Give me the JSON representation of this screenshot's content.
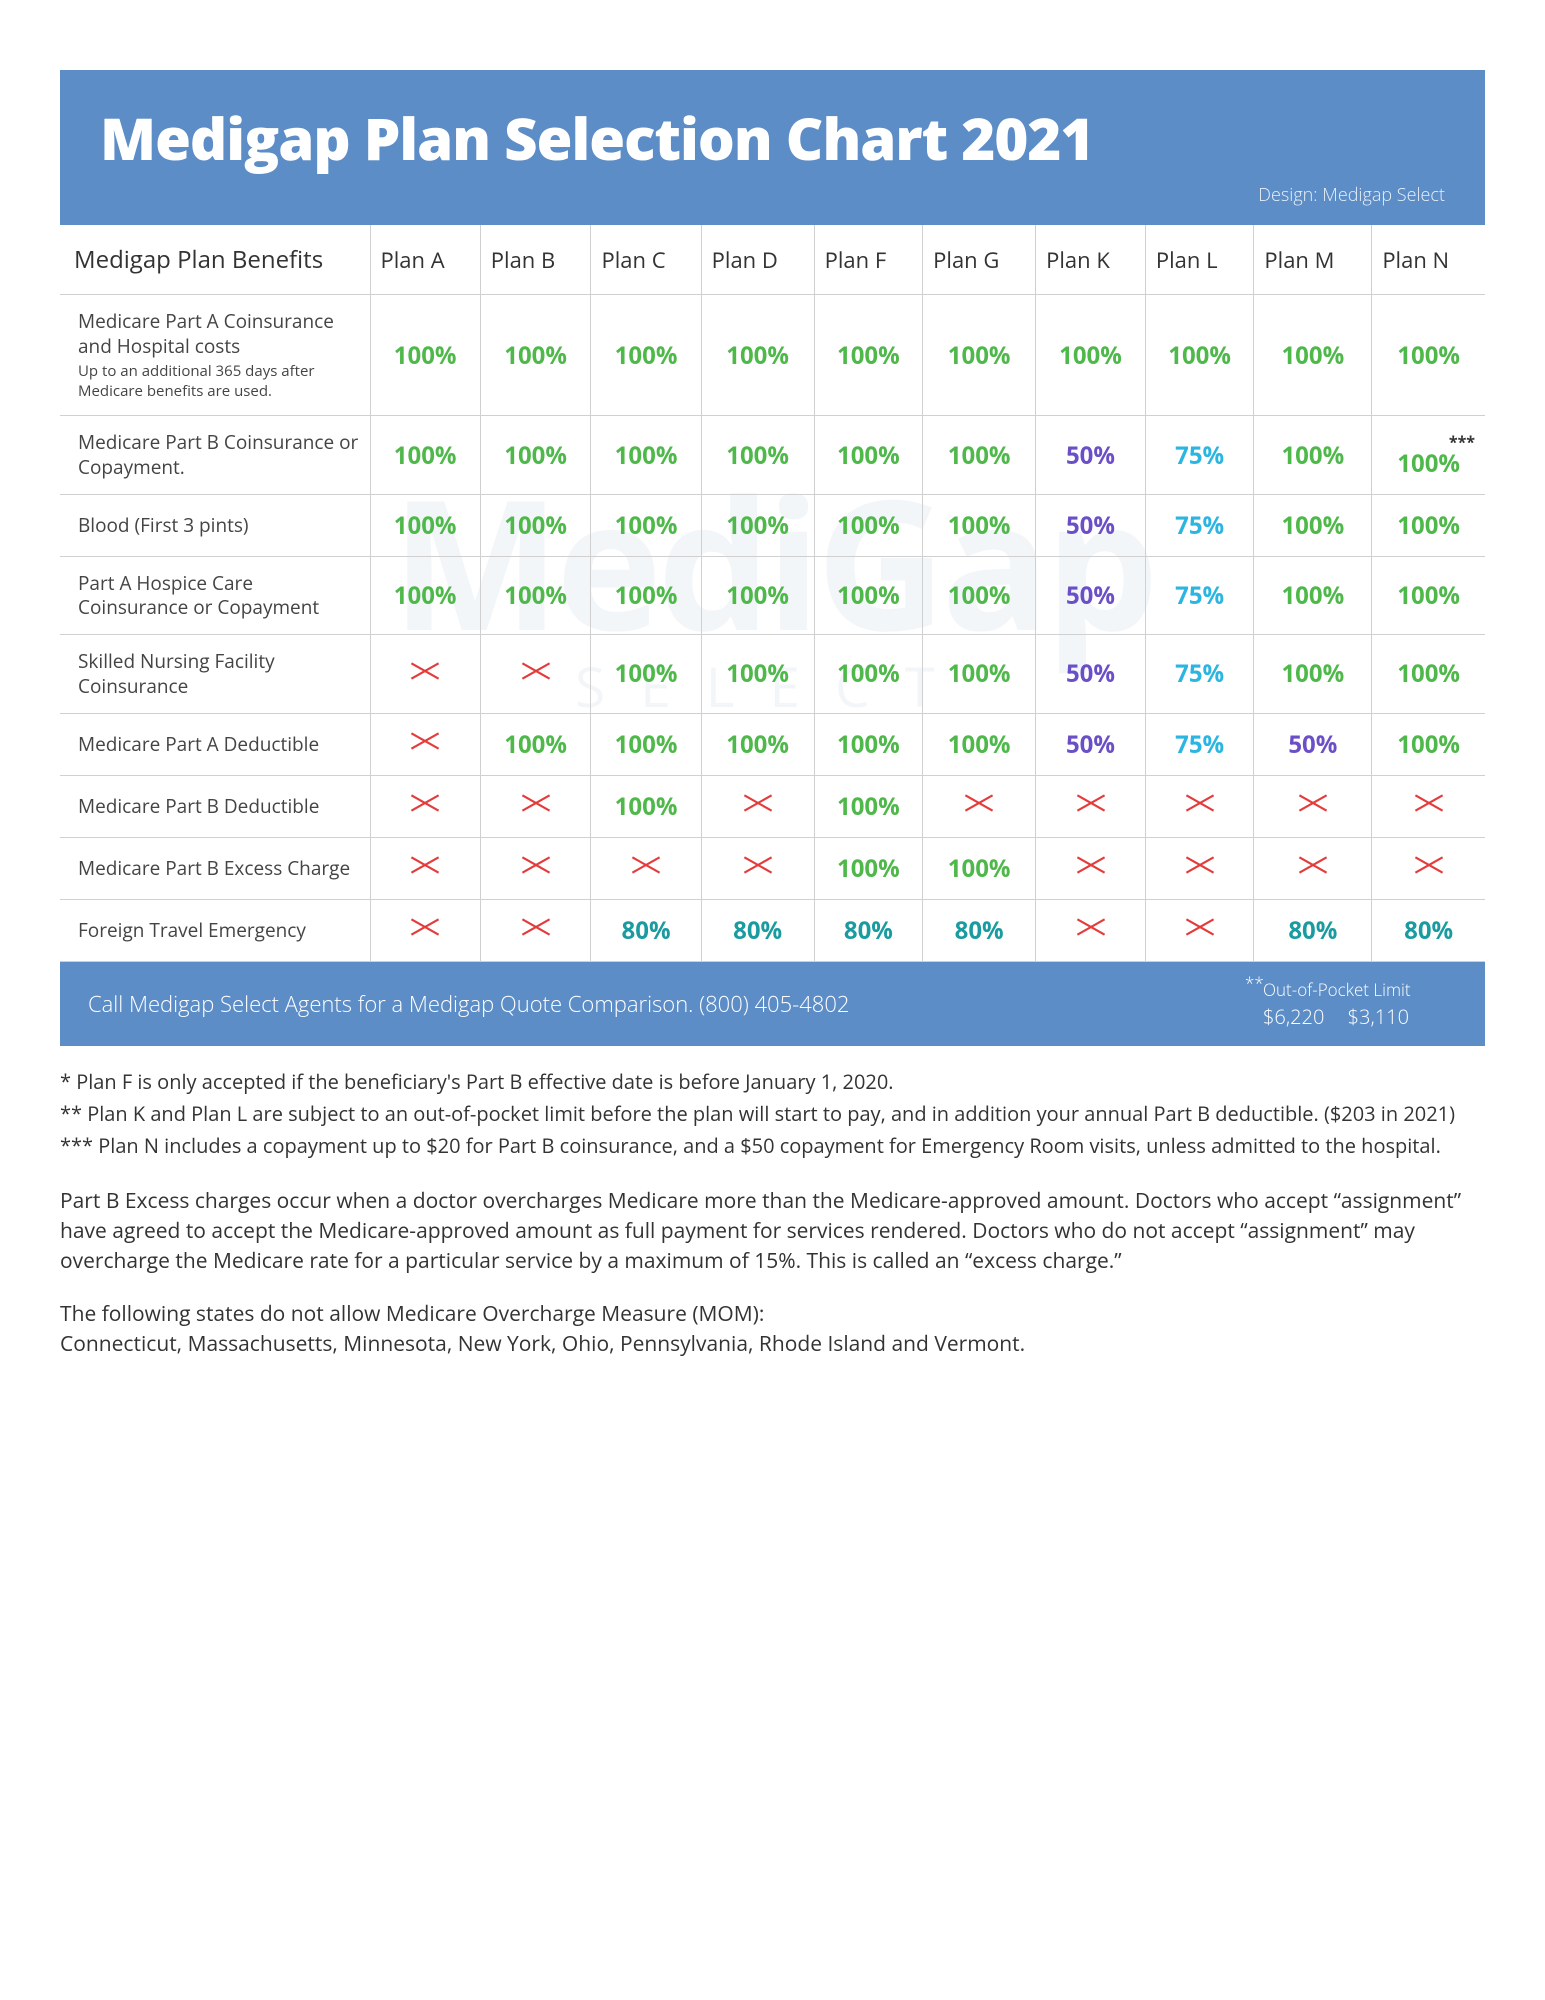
{
  "header": {
    "title": "Medigap Plan Selection Chart 2021",
    "credit": "Design: Medigap Select"
  },
  "watermark": {
    "main": "MediGap",
    "sub": "SELECT"
  },
  "colors": {
    "green": "#4fb84a",
    "purple": "#6b4fc7",
    "cyan": "#2bb5e0",
    "teal": "#1a9ba0",
    "x_stroke": "#e43b3b"
  },
  "columns": [
    "Medigap Plan Benefits",
    "Plan A",
    "Plan B",
    "Plan C",
    "Plan D",
    "Plan F",
    "Plan G",
    "Plan K",
    "Plan L",
    "Plan M",
    "Plan N"
  ],
  "rows": [
    {
      "label": "Medicare Part A Coinsurance and Hospital costs",
      "sub": "Up to an additional 365 days after Medicare benefits are used.",
      "cells": [
        {
          "v": "100%",
          "c": "green"
        },
        {
          "v": "100%",
          "c": "green"
        },
        {
          "v": "100%",
          "c": "green"
        },
        {
          "v": "100%",
          "c": "green"
        },
        {
          "v": "100%",
          "c": "green"
        },
        {
          "v": "100%",
          "c": "green"
        },
        {
          "v": "100%",
          "c": "green"
        },
        {
          "v": "100%",
          "c": "green"
        },
        {
          "v": "100%",
          "c": "green"
        },
        {
          "v": "100%",
          "c": "green"
        }
      ]
    },
    {
      "label": "Medicare Part B Coinsurance or Copayment.",
      "cells": [
        {
          "v": "100%",
          "c": "green"
        },
        {
          "v": "100%",
          "c": "green"
        },
        {
          "v": "100%",
          "c": "green"
        },
        {
          "v": "100%",
          "c": "green"
        },
        {
          "v": "100%",
          "c": "green"
        },
        {
          "v": "100%",
          "c": "green"
        },
        {
          "v": "50%",
          "c": "purple"
        },
        {
          "v": "75%",
          "c": "cyan"
        },
        {
          "v": "100%",
          "c": "green"
        },
        {
          "v": "100%",
          "c": "green",
          "note": "***"
        }
      ]
    },
    {
      "label": "Blood (First 3 pints)",
      "cells": [
        {
          "v": "100%",
          "c": "green"
        },
        {
          "v": "100%",
          "c": "green"
        },
        {
          "v": "100%",
          "c": "green"
        },
        {
          "v": "100%",
          "c": "green"
        },
        {
          "v": "100%",
          "c": "green"
        },
        {
          "v": "100%",
          "c": "green"
        },
        {
          "v": "50%",
          "c": "purple"
        },
        {
          "v": "75%",
          "c": "cyan"
        },
        {
          "v": "100%",
          "c": "green"
        },
        {
          "v": "100%",
          "c": "green"
        }
      ]
    },
    {
      "label": "Part A Hospice Care Coinsurance or Copayment",
      "cells": [
        {
          "v": "100%",
          "c": "green"
        },
        {
          "v": "100%",
          "c": "green"
        },
        {
          "v": "100%",
          "c": "green"
        },
        {
          "v": "100%",
          "c": "green"
        },
        {
          "v": "100%",
          "c": "green"
        },
        {
          "v": "100%",
          "c": "green"
        },
        {
          "v": "50%",
          "c": "purple"
        },
        {
          "v": "75%",
          "c": "cyan"
        },
        {
          "v": "100%",
          "c": "green"
        },
        {
          "v": "100%",
          "c": "green"
        }
      ]
    },
    {
      "label": "Skilled Nursing Facility Coinsurance",
      "cells": [
        {
          "v": "X"
        },
        {
          "v": "X"
        },
        {
          "v": "100%",
          "c": "green"
        },
        {
          "v": "100%",
          "c": "green"
        },
        {
          "v": "100%",
          "c": "green"
        },
        {
          "v": "100%",
          "c": "green"
        },
        {
          "v": "50%",
          "c": "purple"
        },
        {
          "v": "75%",
          "c": "cyan"
        },
        {
          "v": "100%",
          "c": "green"
        },
        {
          "v": "100%",
          "c": "green"
        }
      ]
    },
    {
      "label": "Medicare Part A Deductible",
      "cells": [
        {
          "v": "X"
        },
        {
          "v": "100%",
          "c": "green"
        },
        {
          "v": "100%",
          "c": "green"
        },
        {
          "v": "100%",
          "c": "green"
        },
        {
          "v": "100%",
          "c": "green"
        },
        {
          "v": "100%",
          "c": "green"
        },
        {
          "v": "50%",
          "c": "purple"
        },
        {
          "v": "75%",
          "c": "cyan"
        },
        {
          "v": "50%",
          "c": "purple"
        },
        {
          "v": "100%",
          "c": "green"
        }
      ]
    },
    {
      "label": "Medicare Part B Deductible",
      "cells": [
        {
          "v": "X"
        },
        {
          "v": "X"
        },
        {
          "v": "100%",
          "c": "green"
        },
        {
          "v": "X"
        },
        {
          "v": "100%",
          "c": "green"
        },
        {
          "v": "X"
        },
        {
          "v": "X"
        },
        {
          "v": "X"
        },
        {
          "v": "X"
        },
        {
          "v": "X"
        }
      ]
    },
    {
      "label": "Medicare Part B Excess Charge",
      "cells": [
        {
          "v": "X"
        },
        {
          "v": "X"
        },
        {
          "v": "X"
        },
        {
          "v": "X"
        },
        {
          "v": "100%",
          "c": "green"
        },
        {
          "v": "100%",
          "c": "green"
        },
        {
          "v": "X"
        },
        {
          "v": "X"
        },
        {
          "v": "X"
        },
        {
          "v": "X"
        }
      ]
    },
    {
      "label": "Foreign Travel Emergency",
      "cells": [
        {
          "v": "X"
        },
        {
          "v": "X"
        },
        {
          "v": "80%",
          "c": "teal"
        },
        {
          "v": "80%",
          "c": "teal"
        },
        {
          "v": "80%",
          "c": "teal"
        },
        {
          "v": "80%",
          "c": "teal"
        },
        {
          "v": "X"
        },
        {
          "v": "X"
        },
        {
          "v": "80%",
          "c": "teal"
        },
        {
          "v": "80%",
          "c": "teal"
        }
      ]
    }
  ],
  "footer": {
    "cta": "Call Medigap Select Agents for a Medigap Quote Comparison. (800) 405-4802",
    "limit_label": "Out-of-Pocket Limit",
    "limit_k": "$6,220",
    "limit_l": "$3,110"
  },
  "notes": [
    "* Plan F is only accepted if the beneficiary's Part B effective date is before January 1, 2020.",
    "** Plan K and Plan L are subject to an out-of-pocket limit before the plan will start to pay, and in addition your annual  Part B deductible. ($203 in 2021)",
    "*** Plan N includes a copayment up to $20 for Part B coinsurance, and a $50 copayment for Emergency Room visits, unless admitted to the hospital."
  ],
  "explain": [
    "Part B Excess charges occur when a doctor overcharges Medicare more than the Medicare-approved amount. Doctors who accept “assignment” have agreed to accept the Medicare-approved amount as full payment for services rendered. Doctors who do not accept “assignment” may overcharge the Medicare rate for a particular service by a maximum of 15%. This is called an “excess charge.”",
    "The following states do not allow Medicare Overcharge Measure (MOM):\nConnecticut, Massachusetts, Minnesota, New York, Ohio, Pennsylvania, Rhode Island and Vermont."
  ]
}
